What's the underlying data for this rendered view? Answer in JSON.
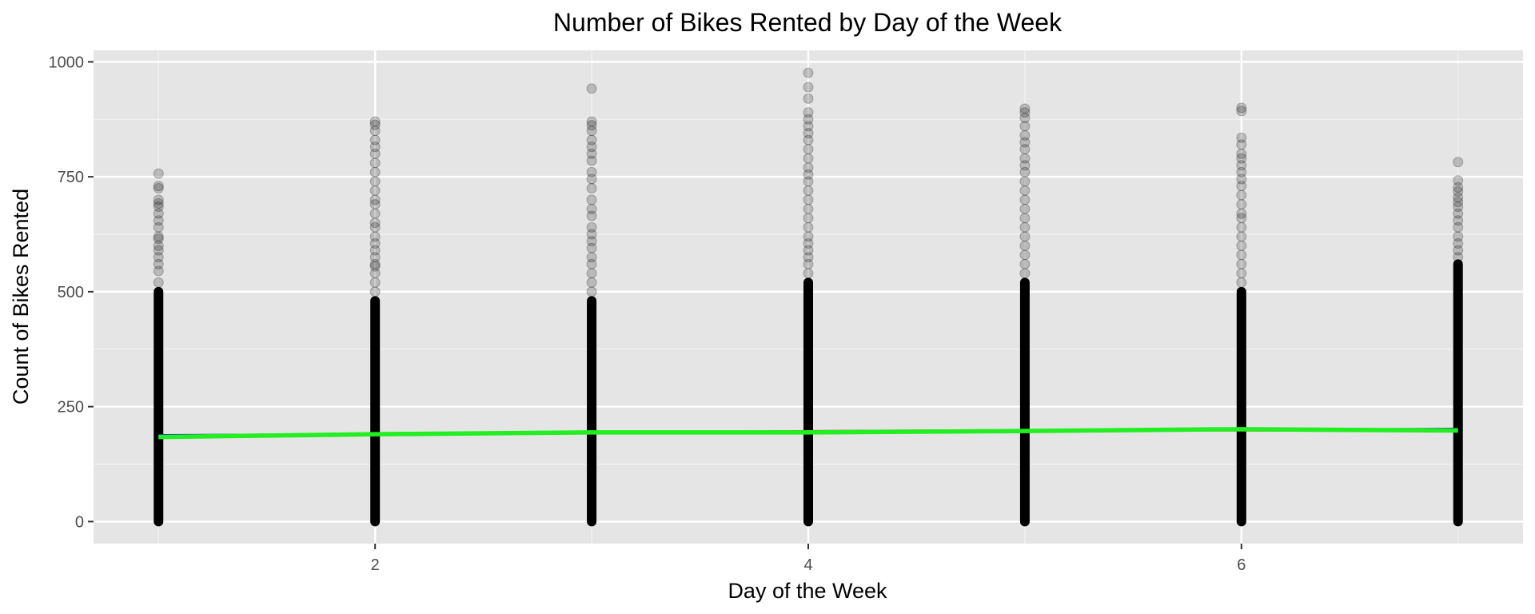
{
  "chart_data": {
    "type": "scatter",
    "title": "Number of Bikes Rented by Day of the Week",
    "xlabel": "Day of the Week",
    "ylabel": "Count of Bikes Rented",
    "xlim": [
      0.7,
      7.3
    ],
    "ylim": [
      -48,
      1025
    ],
    "x_ticks": [
      2,
      4,
      6
    ],
    "x_tick_labels": [
      "2",
      "4",
      "6"
    ],
    "y_ticks": [
      0,
      250,
      500,
      750,
      1000
    ],
    "y_tick_labels": [
      "0",
      "250",
      "500",
      "750",
      "1000"
    ],
    "grid": true,
    "legend": "none",
    "point_color": "#000000",
    "point_opacity": 0.2,
    "panel_background": "#e5e5e5",
    "points_by_day": [
      {
        "x": 1,
        "dense_max": 500,
        "values": [
          520,
          545,
          560,
          575,
          590,
          600,
          615,
          620,
          640,
          655,
          670,
          685,
          692,
          700,
          725,
          730,
          757
        ]
      },
      {
        "x": 2,
        "dense_max": 480,
        "values": [
          500,
          520,
          540,
          555,
          560,
          575,
          590,
          605,
          620,
          640,
          650,
          670,
          690,
          700,
          720,
          740,
          760,
          780,
          800,
          815,
          830,
          850,
          863,
          870
        ]
      },
      {
        "x": 3,
        "dense_max": 480,
        "values": [
          500,
          520,
          540,
          560,
          575,
          595,
          610,
          625,
          640,
          665,
          680,
          700,
          725,
          745,
          760,
          785,
          800,
          815,
          830,
          850,
          862,
          870,
          942
        ]
      },
      {
        "x": 4,
        "dense_max": 520,
        "values": [
          540,
          560,
          575,
          590,
          605,
          620,
          640,
          660,
          680,
          700,
          720,
          740,
          755,
          770,
          790,
          810,
          830,
          845,
          860,
          875,
          890,
          920,
          945,
          976
        ]
      },
      {
        "x": 5,
        "dense_max": 520,
        "values": [
          540,
          560,
          580,
          600,
          620,
          640,
          660,
          680,
          700,
          720,
          740,
          760,
          775,
          790,
          810,
          825,
          840,
          860,
          878,
          890,
          898
        ]
      },
      {
        "x": 6,
        "dense_max": 500,
        "values": [
          520,
          540,
          560,
          580,
          600,
          620,
          640,
          660,
          670,
          690,
          710,
          730,
          745,
          760,
          775,
          790,
          800,
          820,
          835,
          893,
          900
        ]
      },
      {
        "x": 7,
        "dense_max": 560,
        "values": [
          575,
          590,
          605,
          620,
          640,
          655,
          670,
          685,
          695,
          705,
          718,
          727,
          742,
          782
        ]
      }
    ],
    "fit_lines": [
      {
        "color": "#1f1fbf",
        "x": [
          1,
          7
        ],
        "y": [
          188,
          202
        ]
      },
      {
        "color": "#e0332b",
        "x": [
          1,
          2,
          3,
          4,
          5,
          6,
          7
        ],
        "y": [
          184,
          189,
          193,
          197,
          199,
          198,
          197
        ]
      },
      {
        "color": "#22ee22",
        "x": [
          1,
          2,
          3,
          4,
          5,
          6,
          7
        ],
        "y": [
          184,
          190,
          194,
          194,
          197,
          201,
          198
        ]
      }
    ]
  }
}
